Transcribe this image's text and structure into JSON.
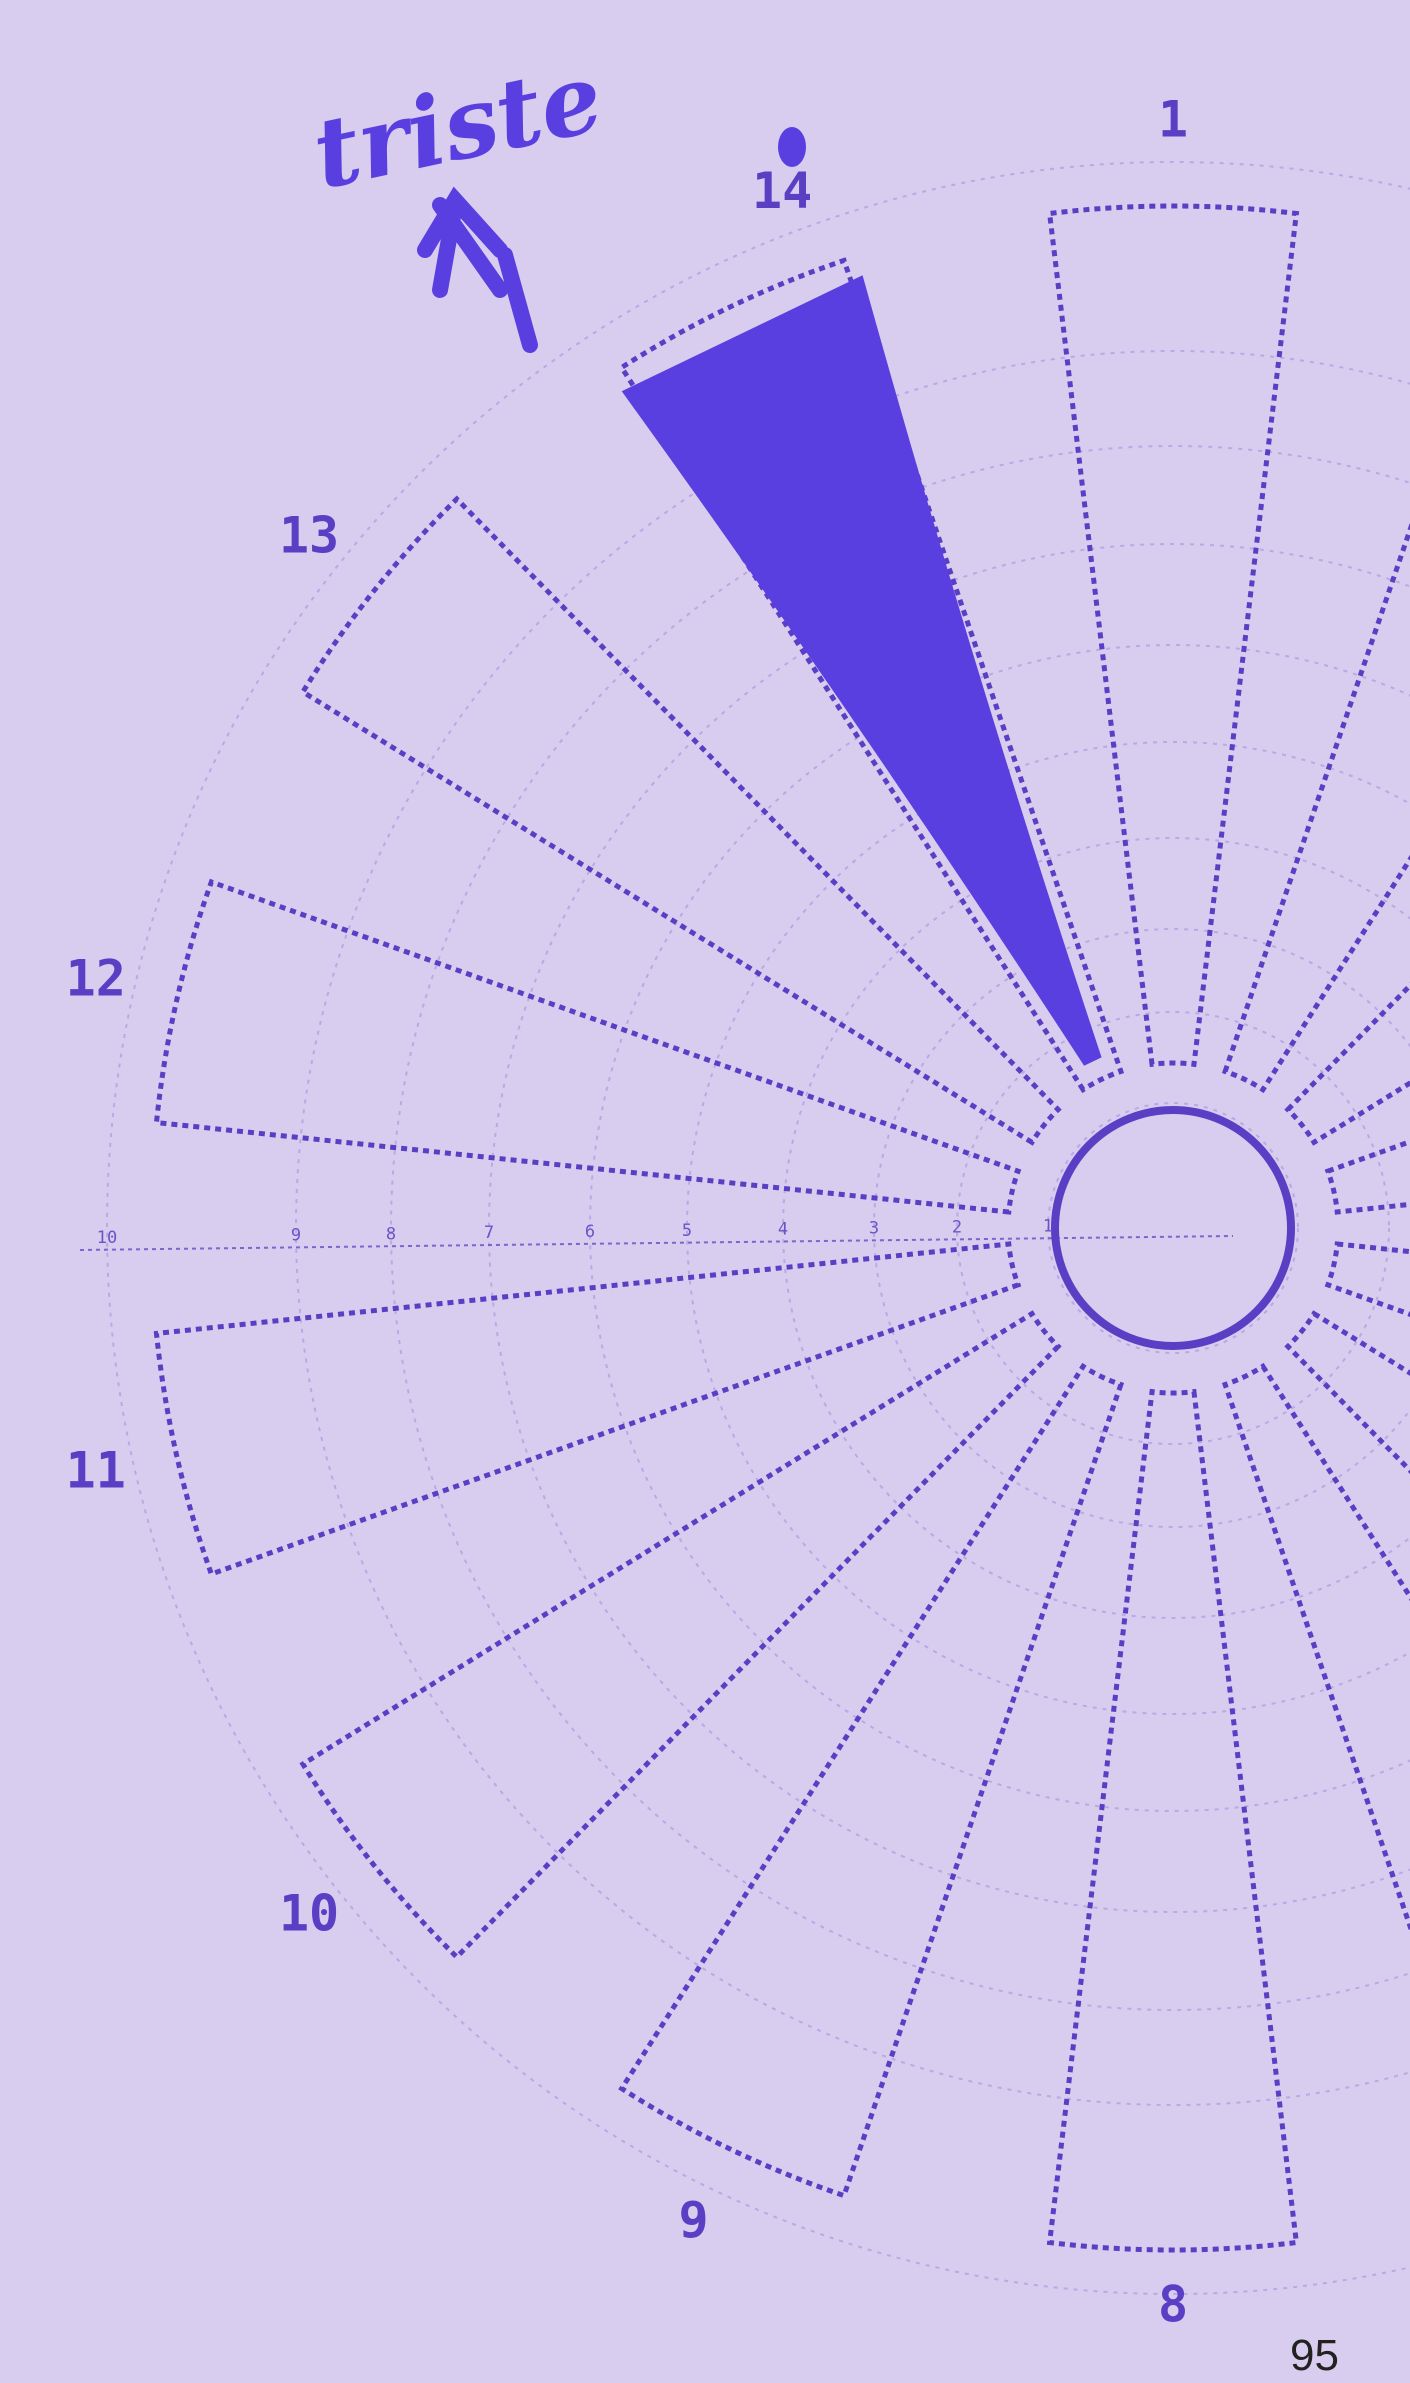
{
  "annotation": "triste",
  "segment_labels": [
    "1",
    "8",
    "9",
    "10",
    "11",
    "12",
    "13",
    "14"
  ],
  "axis_ticks": [
    "1",
    "2",
    "3",
    "4",
    "5",
    "6",
    "7",
    "8",
    "9",
    "10"
  ],
  "page_number": "95"
}
